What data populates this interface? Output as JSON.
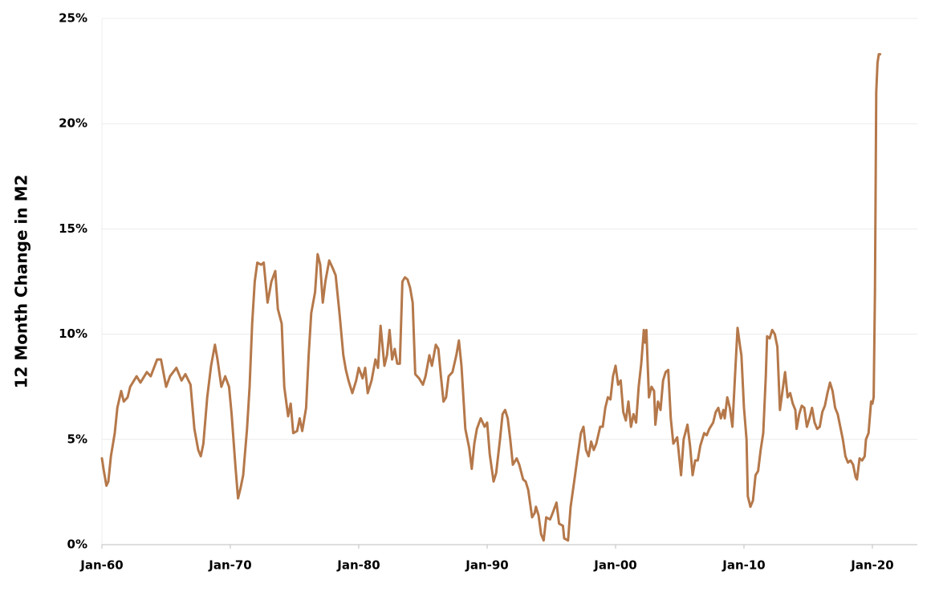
{
  "chart_data": {
    "type": "line",
    "y_label": "12 Month Change in M2",
    "color": "#b5784a",
    "grid": true,
    "xlim": [
      1960,
      2023.5
    ],
    "ylim": [
      0,
      25
    ],
    "xticks": [
      {
        "value": 1960,
        "label": "Jan-60"
      },
      {
        "value": 1970,
        "label": "Jan-70"
      },
      {
        "value": 1980,
        "label": "Jan-80"
      },
      {
        "value": 1990,
        "label": "Jan-90"
      },
      {
        "value": 2000,
        "label": "Jan-00"
      },
      {
        "value": 2010,
        "label": "Jan-10"
      },
      {
        "value": 2020,
        "label": "Jan-20"
      }
    ],
    "yticks": [
      {
        "value": 0,
        "label": "0%"
      },
      {
        "value": 5,
        "label": "5%"
      },
      {
        "value": 10,
        "label": "10%"
      },
      {
        "value": 15,
        "label": "15%"
      },
      {
        "value": 20,
        "label": "20%"
      },
      {
        "value": 25,
        "label": "25%"
      }
    ],
    "x": [
      1960.0,
      1960.15,
      1960.35,
      1960.5,
      1960.7,
      1961.0,
      1961.2,
      1961.5,
      1961.7,
      1962.0,
      1962.2,
      1962.7,
      1963.0,
      1963.5,
      1963.8,
      1964.3,
      1964.6,
      1965.0,
      1965.3,
      1965.8,
      1966.2,
      1966.5,
      1966.9,
      1967.2,
      1967.5,
      1967.7,
      1967.9,
      1968.2,
      1968.5,
      1968.8,
      1969.0,
      1969.3,
      1969.6,
      1969.9,
      1970.1,
      1970.4,
      1970.6,
      1970.8,
      1971.0,
      1971.3,
      1971.5,
      1971.7,
      1971.9,
      1972.1,
      1972.4,
      1972.6,
      1972.9,
      1973.2,
      1973.5,
      1973.7,
      1974.0,
      1974.2,
      1974.5,
      1974.7,
      1974.9,
      1975.2,
      1975.4,
      1975.6,
      1975.9,
      1976.1,
      1976.3,
      1976.6,
      1976.8,
      1977.0,
      1977.2,
      1977.4,
      1977.7,
      1978.0,
      1978.2,
      1978.5,
      1978.8,
      1979.0,
      1979.2,
      1979.5,
      1979.8,
      1980.0,
      1980.3,
      1980.5,
      1980.7,
      1981.0,
      1981.3,
      1981.5,
      1981.7,
      1982.0,
      1982.2,
      1982.4,
      1982.6,
      1982.8,
      1983.0,
      1983.2,
      1983.4,
      1983.6,
      1983.8,
      1984.0,
      1984.2,
      1984.4,
      1984.7,
      1985.0,
      1985.2,
      1985.5,
      1985.7,
      1986.0,
      1986.2,
      1986.4,
      1986.6,
      1986.8,
      1987.0,
      1987.3,
      1987.6,
      1987.8,
      1988.0,
      1988.3,
      1988.6,
      1988.8,
      1989.0,
      1989.2,
      1989.5,
      1989.8,
      1990.0,
      1990.2,
      1990.5,
      1990.7,
      1991.0,
      1991.2,
      1991.4,
      1991.6,
      1991.8,
      1992.0,
      1992.3,
      1992.5,
      1992.8,
      1993.0,
      1993.2,
      1993.5,
      1993.7,
      1993.8,
      1994.0,
      1994.2,
      1994.4,
      1994.6,
      1994.9,
      1995.1,
      1995.4,
      1995.6,
      1995.9,
      1996.0,
      1996.3,
      1996.5,
      1996.8,
      1997.0,
      1997.3,
      1997.5,
      1997.7,
      1997.9,
      1998.1,
      1998.3,
      1998.5,
      1998.8,
      1999.0,
      1999.2,
      1999.4,
      1999.6,
      1999.8,
      2000.0,
      2000.2,
      2000.4,
      2000.6,
      2000.8,
      2001.0,
      2001.2,
      2001.4,
      2001.6,
      2001.8,
      2002.0,
      2002.2,
      2002.3,
      2002.4,
      2002.6,
      2002.8,
      2003.0,
      2003.1,
      2003.3,
      2003.5,
      2003.7,
      2003.9,
      2004.1,
      2004.3,
      2004.5,
      2004.8,
      2005.0,
      2005.1,
      2005.3,
      2005.6,
      2005.8,
      2006.0,
      2006.2,
      2006.4,
      2006.6,
      2006.9,
      2007.1,
      2007.3,
      2007.6,
      2007.8,
      2008.0,
      2008.2,
      2008.4,
      2008.5,
      2008.7,
      2008.9,
      2009.1,
      2009.3,
      2009.5,
      2009.7,
      2009.8,
      2010.0,
      2010.2,
      2010.3,
      2010.5,
      2010.7,
      2010.9,
      2011.1,
      2011.3,
      2011.5,
      2011.7,
      2011.8,
      2012.0,
      2012.2,
      2012.4,
      2012.6,
      2012.8,
      2013.0,
      2013.2,
      2013.4,
      2013.6,
      2013.8,
      2014.0,
      2014.1,
      2014.3,
      2014.5,
      2014.7,
      2014.9,
      2015.1,
      2015.3,
      2015.5,
      2015.7,
      2015.9,
      2016.1,
      2016.3,
      2016.5,
      2016.7,
      2016.9,
      2017.1,
      2017.3,
      2017.5,
      2017.7,
      2017.9,
      2018.1,
      2018.3,
      2018.5,
      2018.7,
      2018.8,
      2019.0,
      2019.2,
      2019.4,
      2019.5,
      2019.7,
      2019.9,
      2020.0,
      2020.1,
      2020.2,
      2020.3,
      2020.4,
      2020.5,
      2020.6
    ],
    "values": [
      4.1,
      3.5,
      2.8,
      3.0,
      4.2,
      5.3,
      6.5,
      7.3,
      6.8,
      7.0,
      7.5,
      8.0,
      7.7,
      8.2,
      8.0,
      8.8,
      8.8,
      7.5,
      8.0,
      8.4,
      7.8,
      8.1,
      7.6,
      5.5,
      4.5,
      4.2,
      4.8,
      7.0,
      8.5,
      9.5,
      8.8,
      7.5,
      8.0,
      7.5,
      6.2,
      3.7,
      2.2,
      2.7,
      3.3,
      5.5,
      7.5,
      10.5,
      12.5,
      13.4,
      13.3,
      13.4,
      11.5,
      12.5,
      13.0,
      11.2,
      10.5,
      7.5,
      6.1,
      6.7,
      5.3,
      5.4,
      6.0,
      5.4,
      6.5,
      9.0,
      11.0,
      12.0,
      13.8,
      13.3,
      11.5,
      12.5,
      13.5,
      13.1,
      12.8,
      11.0,
      9.0,
      8.3,
      7.8,
      7.2,
      7.8,
      8.4,
      7.9,
      8.4,
      7.2,
      7.8,
      8.8,
      8.4,
      10.4,
      8.5,
      9.0,
      10.2,
      8.8,
      9.3,
      8.6,
      8.6,
      12.5,
      12.7,
      12.6,
      12.2,
      11.5,
      8.1,
      7.9,
      7.6,
      8.0,
      9.0,
      8.5,
      9.5,
      9.3,
      8.0,
      6.8,
      7.0,
      8.0,
      8.2,
      9.0,
      9.7,
      8.5,
      5.5,
      4.6,
      3.6,
      4.8,
      5.5,
      6.0,
      5.6,
      5.8,
      4.3,
      3.0,
      3.4,
      5.0,
      6.2,
      6.4,
      6.0,
      5.0,
      3.8,
      4.1,
      3.8,
      3.1,
      3.0,
      2.6,
      1.3,
      1.5,
      1.8,
      1.4,
      0.5,
      0.2,
      1.3,
      1.2,
      1.5,
      2.0,
      1.0,
      0.9,
      0.3,
      0.2,
      1.8,
      3.1,
      4.0,
      5.3,
      5.6,
      4.5,
      4.2,
      4.9,
      4.5,
      4.8,
      5.6,
      5.6,
      6.5,
      7.0,
      6.9,
      8.0,
      8.5,
      7.6,
      7.8,
      6.3,
      5.9,
      6.8,
      5.6,
      6.2,
      5.8,
      7.5,
      8.6,
      10.2,
      9.6,
      10.2,
      7.0,
      7.5,
      7.3,
      5.7,
      6.8,
      6.4,
      7.8,
      8.2,
      8.3,
      6.0,
      4.8,
      5.1,
      3.9,
      3.3,
      5.0,
      5.7,
      4.7,
      3.3,
      4.0,
      4.0,
      4.7,
      5.3,
      5.2,
      5.5,
      5.8,
      6.3,
      6.5,
      6.0,
      6.4,
      6.0,
      7.0,
      6.5,
      5.6,
      8.0,
      10.3,
      9.4,
      9.0,
      6.5,
      5.0,
      2.3,
      1.8,
      2.1,
      3.3,
      3.5,
      4.5,
      5.3,
      8.0,
      9.9,
      9.8,
      10.2,
      10.0,
      9.4,
      6.4,
      7.3,
      8.2,
      7.0,
      7.2,
      6.7,
      6.4,
      5.5,
      6.2,
      6.6,
      6.5,
      5.6,
      6.0,
      6.5,
      5.8,
      5.5,
      5.6,
      6.3,
      6.6,
      7.2,
      7.7,
      7.3,
      6.5,
      6.2,
      5.6,
      5.0,
      4.2,
      3.9,
      4.0,
      3.8,
      3.2,
      3.1,
      4.1,
      4.0,
      4.2,
      5.0,
      5.3,
      6.8,
      6.7,
      7.0,
      12.0,
      21.5,
      22.9,
      23.3,
      23.3
    ]
  }
}
